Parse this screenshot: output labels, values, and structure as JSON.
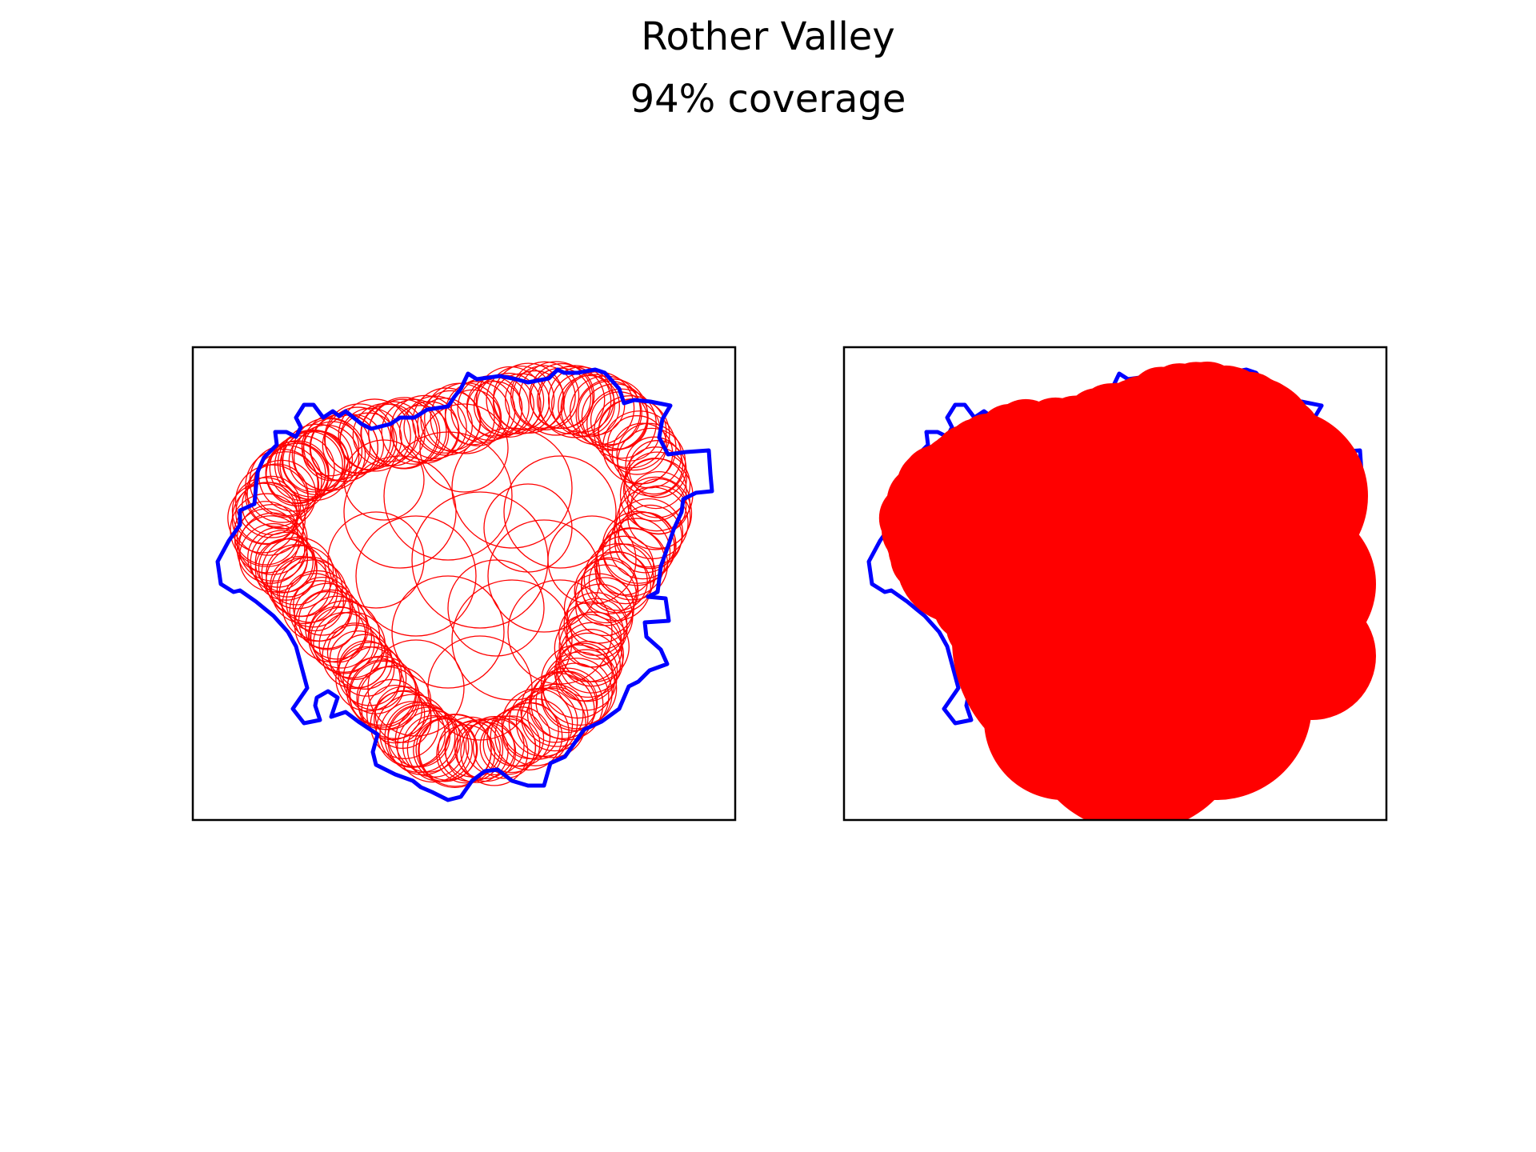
{
  "figure": {
    "title": "Rother Valley",
    "subtitle": "94% coverage"
  },
  "colors": {
    "boundary": "#0000ff",
    "circles": "#ff0000",
    "frame": "#000000",
    "background": "#ffffff"
  },
  "panels": [
    {
      "name": "circle-outlines-panel",
      "style": "outline"
    },
    {
      "name": "circle-filled-panel",
      "style": "filled"
    }
  ]
}
